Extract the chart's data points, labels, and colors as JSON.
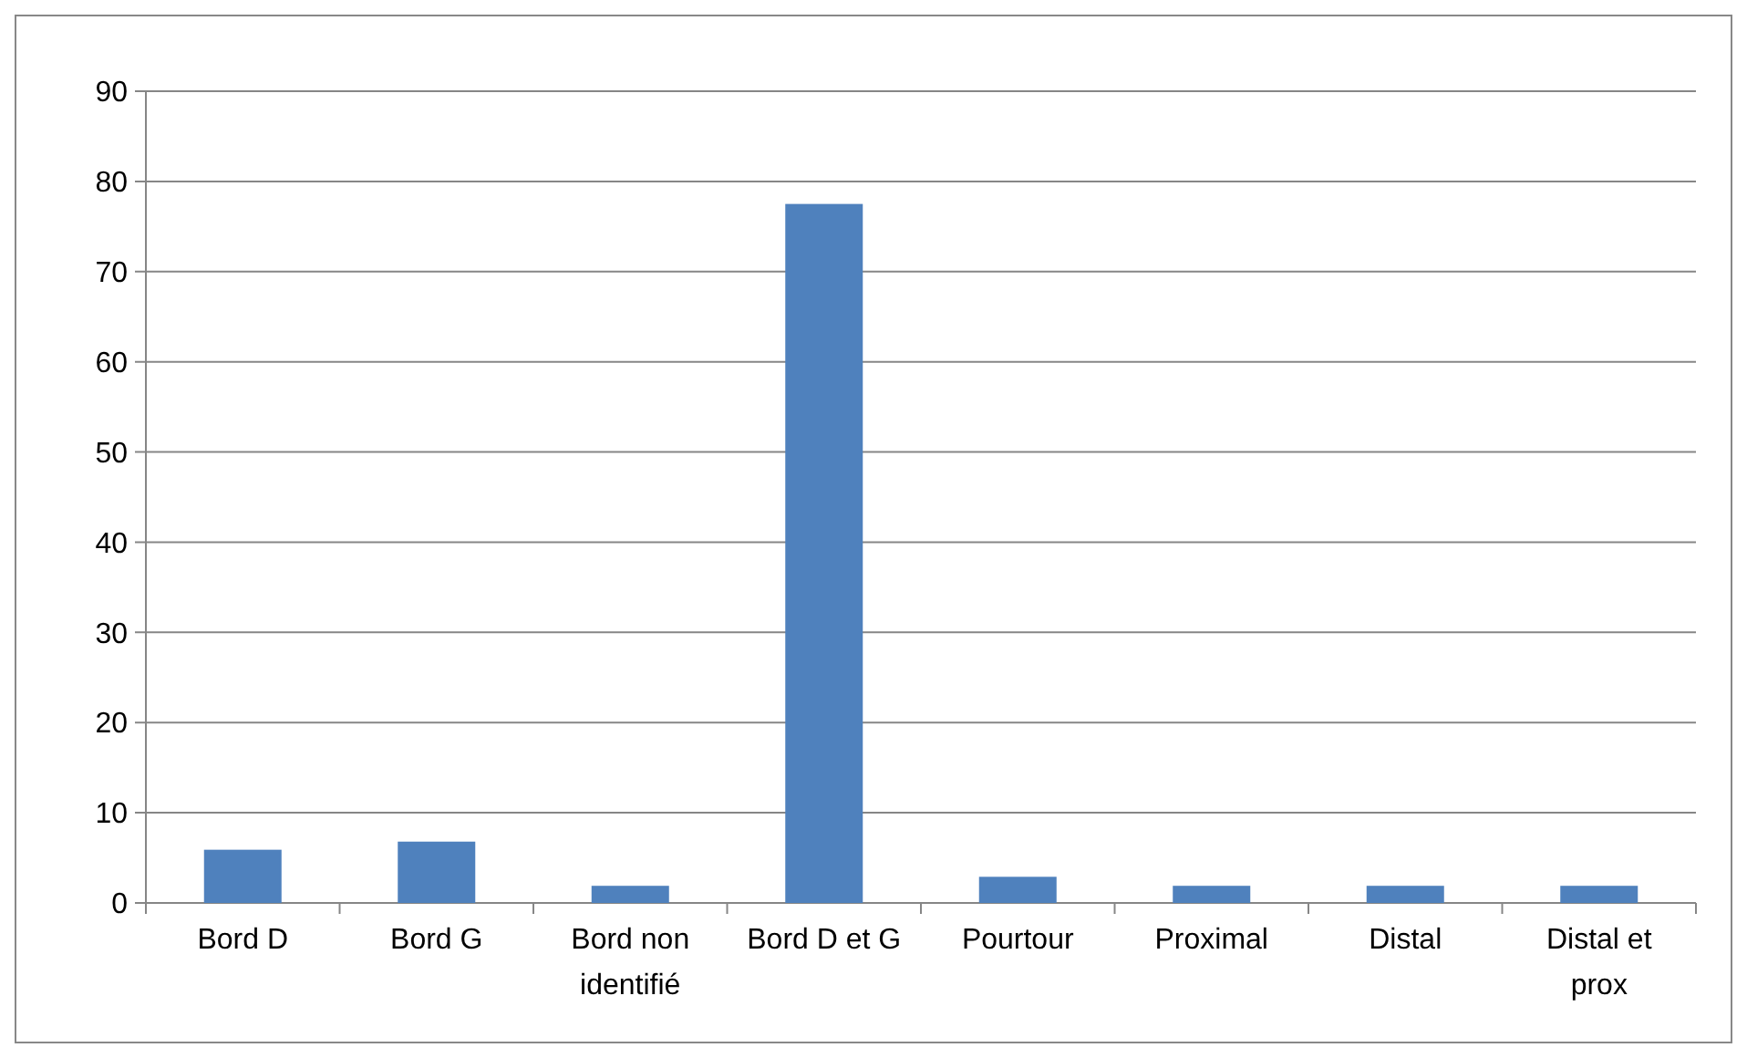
{
  "chart_data": {
    "type": "bar",
    "categories": [
      "Bord D",
      "Bord G",
      "Bord non identifié",
      "Bord D et G",
      "Pourtour",
      "Proximal",
      "Distal",
      "Distal et prox"
    ],
    "values": [
      5.9,
      6.8,
      1.9,
      77.5,
      2.9,
      1.9,
      1.9,
      1.9
    ],
    "color": "#4f81bd",
    "ylim": [
      0,
      90
    ],
    "yticks": [
      0,
      10,
      20,
      30,
      40,
      50,
      60,
      70,
      80,
      90
    ],
    "grid": "y"
  }
}
